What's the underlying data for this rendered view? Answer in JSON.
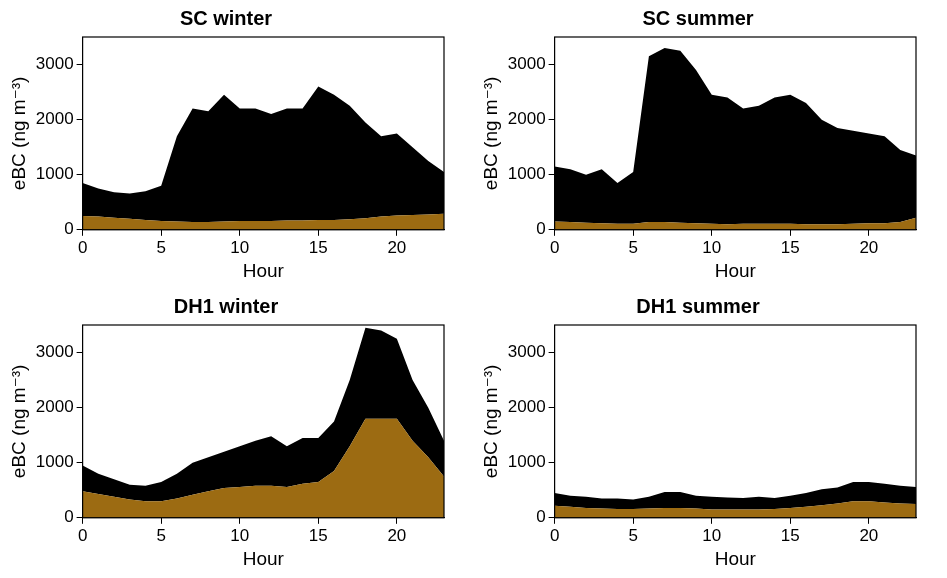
{
  "chart_data": [
    {
      "type": "area",
      "title": "SC winter",
      "x_label": "Hour",
      "y_label": "eBC (ng m⁻³)",
      "x": [
        0,
        1,
        2,
        3,
        4,
        5,
        6,
        7,
        8,
        9,
        10,
        11,
        12,
        13,
        14,
        15,
        16,
        17,
        18,
        19,
        20,
        21,
        22,
        23
      ],
      "xlim": [
        0,
        23
      ],
      "xticks": [
        0,
        5,
        10,
        15,
        20
      ],
      "ylim": [
        0,
        3500
      ],
      "yticks": [
        0,
        1000,
        2000,
        3000
      ],
      "stacked": true,
      "grid": false,
      "series": [
        {
          "color": "#9c6b12",
          "values": [
            250,
            240,
            220,
            200,
            180,
            160,
            150,
            140,
            140,
            150,
            160,
            160,
            160,
            170,
            170,
            180,
            180,
            190,
            210,
            240,
            260,
            270,
            280,
            290
          ]
        },
        {
          "color": "#000000",
          "values": [
            600,
            510,
            460,
            460,
            520,
            640,
            1550,
            2060,
            2010,
            2300,
            2040,
            2040,
            1940,
            2030,
            2030,
            2420,
            2270,
            2060,
            1740,
            1460,
            1490,
            1230,
            970,
            760
          ]
        }
      ]
    },
    {
      "type": "area",
      "title": "SC summer",
      "x_label": "Hour",
      "y_label": "eBC (ng m⁻³)",
      "x": [
        0,
        1,
        2,
        3,
        4,
        5,
        6,
        7,
        8,
        9,
        10,
        11,
        12,
        13,
        14,
        15,
        16,
        17,
        18,
        19,
        20,
        21,
        22,
        23
      ],
      "xlim": [
        0,
        23
      ],
      "xticks": [
        0,
        5,
        10,
        15,
        20
      ],
      "ylim": [
        0,
        3500
      ],
      "yticks": [
        0,
        1000,
        2000,
        3000
      ],
      "stacked": true,
      "grid": false,
      "series": [
        {
          "color": "#9c6b12",
          "values": [
            150,
            140,
            130,
            120,
            110,
            110,
            140,
            140,
            130,
            120,
            110,
            100,
            110,
            110,
            110,
            110,
            100,
            100,
            100,
            110,
            120,
            120,
            140,
            220
          ]
        },
        {
          "color": "#000000",
          "values": [
            1000,
            960,
            870,
            980,
            740,
            940,
            3010,
            3160,
            3120,
            2780,
            2340,
            2300,
            2090,
            2140,
            2290,
            2340,
            2200,
            1900,
            1750,
            1690,
            1630,
            1580,
            1310,
            1130
          ]
        }
      ]
    },
    {
      "type": "area",
      "title": "DH1 winter",
      "x_label": "Hour",
      "y_label": "eBC (ng m⁻³)",
      "x": [
        0,
        1,
        2,
        3,
        4,
        5,
        6,
        7,
        8,
        9,
        10,
        11,
        12,
        13,
        14,
        15,
        16,
        17,
        18,
        19,
        20,
        21,
        22,
        23
      ],
      "xlim": [
        0,
        23
      ],
      "xticks": [
        0,
        5,
        10,
        15,
        20
      ],
      "ylim": [
        0,
        3500
      ],
      "yticks": [
        0,
        1000,
        2000,
        3000
      ],
      "stacked": true,
      "grid": false,
      "series": [
        {
          "color": "#9c6b12",
          "values": [
            480,
            430,
            380,
            330,
            300,
            300,
            350,
            420,
            480,
            540,
            560,
            580,
            580,
            560,
            620,
            650,
            850,
            1300,
            1800,
            1800,
            1800,
            1400,
            1100,
            750
          ]
        },
        {
          "color": "#000000",
          "values": [
            470,
            370,
            320,
            270,
            280,
            350,
            450,
            580,
            620,
            660,
            740,
            820,
            900,
            740,
            830,
            800,
            900,
            1200,
            1650,
            1600,
            1450,
            1100,
            900,
            650
          ]
        }
      ]
    },
    {
      "type": "area",
      "title": "DH1 summer",
      "x_label": "Hour",
      "y_label": "eBC (ng m⁻³)",
      "x": [
        0,
        1,
        2,
        3,
        4,
        5,
        6,
        7,
        8,
        9,
        10,
        11,
        12,
        13,
        14,
        15,
        16,
        17,
        18,
        19,
        20,
        21,
        22,
        23
      ],
      "xlim": [
        0,
        23
      ],
      "xticks": [
        0,
        5,
        10,
        15,
        20
      ],
      "ylim": [
        0,
        3500
      ],
      "yticks": [
        0,
        1000,
        2000,
        3000
      ],
      "stacked": true,
      "grid": false,
      "series": [
        {
          "color": "#9c6b12",
          "values": [
            220,
            200,
            180,
            170,
            160,
            160,
            170,
            180,
            180,
            170,
            150,
            150,
            150,
            150,
            160,
            180,
            200,
            230,
            260,
            300,
            300,
            280,
            260,
            250
          ]
        },
        {
          "color": "#000000",
          "values": [
            230,
            200,
            200,
            180,
            190,
            170,
            210,
            290,
            290,
            230,
            230,
            220,
            210,
            230,
            200,
            220,
            250,
            290,
            290,
            350,
            350,
            340,
            320,
            310
          ]
        }
      ]
    }
  ]
}
